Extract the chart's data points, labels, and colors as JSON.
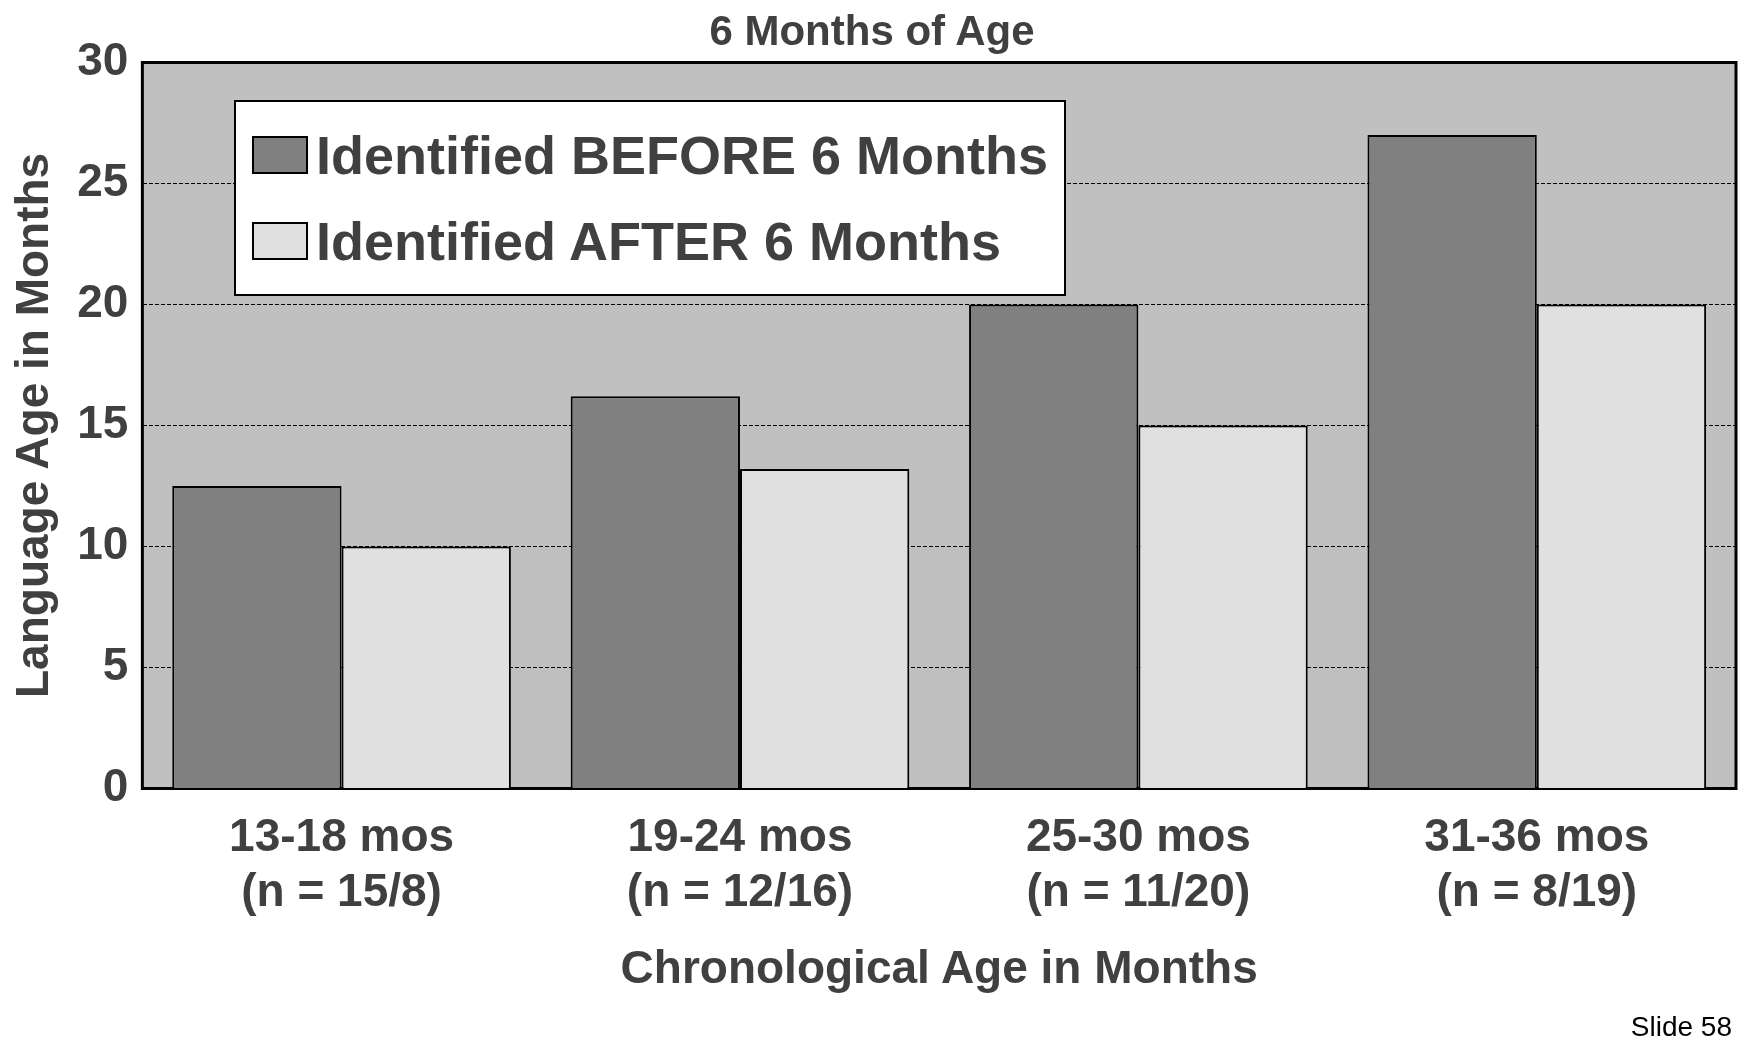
{
  "chart_data": {
    "type": "bar",
    "title": "6 Months of Age",
    "xlabel": "Chronological Age in Months",
    "ylabel": "Language Age in Months",
    "categories": [
      "13-18 mos\n(n = 15/8)",
      "19-24 mos\n(n = 12/16)",
      "25-30 mos\n(n = 11/20)",
      "31-36 mos\n(n = 8/19)"
    ],
    "series": [
      {
        "name": "Identified BEFORE 6 Months",
        "color": "#808080",
        "values": [
          12.5,
          16.2,
          20,
          27
        ]
      },
      {
        "name": "Identified AFTER 6 Months",
        "color": "#e0e0e0",
        "values": [
          10,
          13.2,
          15,
          20
        ]
      }
    ],
    "ylim": [
      0,
      30
    ],
    "yticks": [
      0,
      5,
      10,
      15,
      20,
      25,
      30
    ],
    "grid": "y",
    "legend": "top left",
    "annotations": [
      "Slide 58"
    ]
  }
}
